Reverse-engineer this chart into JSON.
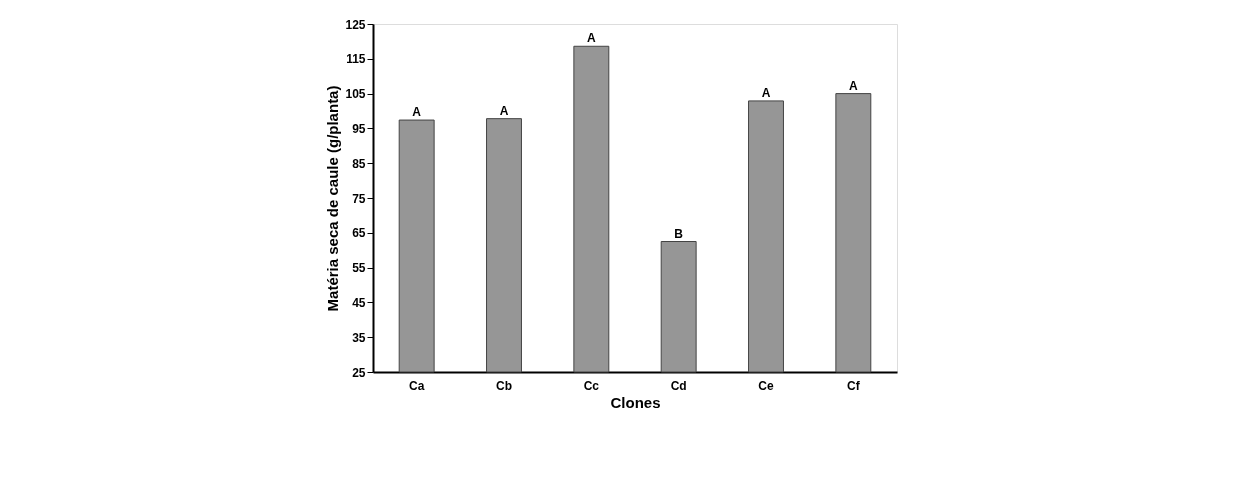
{
  "chart_data": {
    "type": "bar",
    "xlabel": "Clones",
    "ylabel": "Matéria seca de caule (g/planta)",
    "categories": [
      "Ca",
      "Cb",
      "Cc",
      "Cd",
      "Ce",
      "Cf"
    ],
    "values": [
      97.4,
      97.8,
      118.6,
      62.5,
      102.9,
      105.0
    ],
    "color": "#969696",
    "ylim": [
      25,
      125
    ],
    "yticks": [
      25,
      35,
      45,
      55,
      65,
      75,
      85,
      95,
      105,
      115,
      125
    ],
    "grid": false,
    "annotations": [
      {
        "text": "A",
        "x": "Ca",
        "y": 97.4
      },
      {
        "text": "A",
        "x": "Cb",
        "y": 97.8
      },
      {
        "text": "A",
        "x": "Cc",
        "y": 118.6
      },
      {
        "text": "B",
        "x": "Cd",
        "y": 62.5
      },
      {
        "text": "A",
        "x": "Ce",
        "y": 102.9
      },
      {
        "text": "A",
        "x": "Cf",
        "y": 105.0
      }
    ]
  }
}
